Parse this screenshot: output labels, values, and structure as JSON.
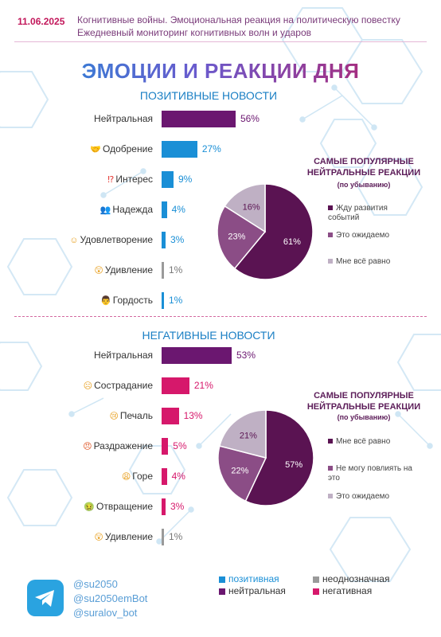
{
  "header": {
    "date": "11.06.2025",
    "subtitle_line1": "Когнитивные войны. Эмоциональная реакция на политическую повестку",
    "subtitle_line2": "Ежедневный мониторинг когнитивных волн и ударов"
  },
  "main_title": "ЭМОЦИИ И РЕАКЦИИ ДНЯ",
  "colors": {
    "positive": "#1a8fd6",
    "neutral": "#6b1770",
    "ambiguous": "#9a9a9a",
    "negative": "#d6186b",
    "pie_dark": "#5a1352",
    "pie_mid": "#8b4d86",
    "pie_light": "#bfb0c4"
  },
  "positive_section": {
    "title": "ПОЗИТИВНЫЕ НОВОСТИ",
    "pie_title": "САМЫЕ ПОПУЛЯРНЫЕ НЕЙТРАЛЬНЫЕ РЕАКЦИИ",
    "pie_subtitle": "(по убыванию)"
  },
  "negative_section": {
    "title": "НЕГАТИВНЫЕ НОВОСТИ",
    "pie_title": "САМЫЕ ПОПУЛЯРНЫЕ НЕЙТРАЛЬНЫЕ РЕАКЦИИ",
    "pie_subtitle": "(по убыванию)"
  },
  "chart_data": [
    {
      "type": "bar",
      "title": "ПОЗИТИВНЫЕ НОВОСТИ",
      "categories": [
        "Нейтральная",
        "Одобрение",
        "Интерес",
        "Надежда",
        "Удовлетворение",
        "Удивление",
        "Гордость"
      ],
      "icons": [
        "",
        "handshake-emoji-icon",
        "exclamation-question-emoji-icon",
        "people-emoji-icon",
        "smiling-face-emoji-icon",
        "astonished-face-emoji-icon",
        "man-emoji-icon"
      ],
      "values": [
        56,
        27,
        9,
        4,
        3,
        1,
        1
      ],
      "value_labels": [
        "56%",
        "27%",
        "9%",
        "4%",
        "3%",
        "1%",
        "1%"
      ],
      "classes": [
        "neutral",
        "positive",
        "positive",
        "positive",
        "positive",
        "ambiguous",
        "positive"
      ]
    },
    {
      "type": "pie",
      "title": "САМЫЕ ПОПУЛЯРНЫЕ НЕЙТРАЛЬНЫЕ РЕАКЦИИ",
      "labels": [
        "Жду развития событий",
        "Это ожидаемо",
        "Мне всё равно"
      ],
      "values": [
        61,
        23,
        16
      ],
      "value_labels": [
        "61%",
        "23%",
        "16%"
      ]
    },
    {
      "type": "bar",
      "title": "НЕГАТИВНЫЕ НОВОСТИ",
      "categories": [
        "Нейтральная",
        "Сострадание",
        "Печаль",
        "Раздражение",
        "Горе",
        "Отвращение",
        "Удивление"
      ],
      "icons": [
        "",
        "sad-face-emoji-icon",
        "crying-face-emoji-icon",
        "angry-face-emoji-icon",
        "weary-face-emoji-icon",
        "nauseated-face-emoji-icon",
        "astonished-face-emoji-icon"
      ],
      "values": [
        53,
        21,
        13,
        5,
        4,
        3,
        1
      ],
      "value_labels": [
        "53%",
        "21%",
        "13%",
        "5%",
        "4%",
        "3%",
        "1%"
      ],
      "classes": [
        "neutral",
        "negative",
        "negative",
        "negative",
        "negative",
        "negative",
        "ambiguous"
      ]
    },
    {
      "type": "pie",
      "title": "САМЫЕ ПОПУЛЯРНЫЕ НЕЙТРАЛЬНЫЕ РЕАКЦИИ",
      "labels": [
        "Мне всё равно",
        "Не могу повлиять на это",
        "Это ожидаемо"
      ],
      "values": [
        57,
        22,
        21
      ],
      "value_labels": [
        "57%",
        "22%",
        "21%"
      ]
    }
  ],
  "footer": {
    "logo_icon": "telegram-icon",
    "handles": [
      "@su2050",
      "@su2050emBot",
      "@suralov_bot"
    ],
    "legend": [
      {
        "key": "positive",
        "label": "позитивная"
      },
      {
        "key": "ambiguous",
        "label": "неоднозначная"
      },
      {
        "key": "neutral",
        "label": "нейтральная"
      },
      {
        "key": "negative",
        "label": "негативная"
      }
    ]
  }
}
